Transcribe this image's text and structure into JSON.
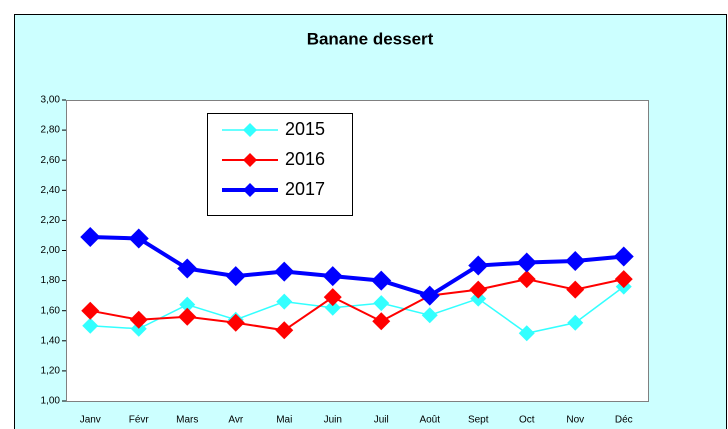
{
  "chart_data": {
    "type": "line",
    "title": "Banane dessert",
    "categories": [
      "Janv",
      "Févr",
      "Mars",
      "Avr",
      "Mai",
      "Juin",
      "Juil",
      "Août",
      "Sept",
      "Oct",
      "Nov",
      "Déc"
    ],
    "series": [
      {
        "name": "2015",
        "color": "#33ffff",
        "values": [
          1.5,
          1.48,
          1.64,
          1.54,
          1.66,
          1.62,
          1.65,
          1.57,
          1.68,
          1.45,
          1.52,
          1.76
        ]
      },
      {
        "name": "2016",
        "color": "#ff0000",
        "values": [
          1.6,
          1.54,
          1.56,
          1.52,
          1.47,
          1.69,
          1.53,
          1.7,
          1.74,
          1.81,
          1.74,
          1.81
        ]
      },
      {
        "name": "2017",
        "color": "#0000ff",
        "values": [
          2.09,
          2.08,
          1.88,
          1.83,
          1.86,
          1.83,
          1.8,
          1.7,
          1.9,
          1.92,
          1.93,
          1.96
        ]
      }
    ],
    "ylim": [
      1.0,
      3.0
    ],
    "yticks": [
      {
        "value": 1.0,
        "label": "1,00"
      },
      {
        "value": 1.2,
        "label": "1,20"
      },
      {
        "value": 1.4,
        "label": "1,40"
      },
      {
        "value": 1.6,
        "label": "1,60"
      },
      {
        "value": 1.8,
        "label": "1,80"
      },
      {
        "value": 2.0,
        "label": "2,00"
      },
      {
        "value": 2.2,
        "label": "2,20"
      },
      {
        "value": 2.4,
        "label": "2,40"
      },
      {
        "value": 2.6,
        "label": "2,60"
      },
      {
        "value": 2.8,
        "label": "2,80"
      },
      {
        "value": 3.0,
        "label": "3,00"
      }
    ]
  }
}
